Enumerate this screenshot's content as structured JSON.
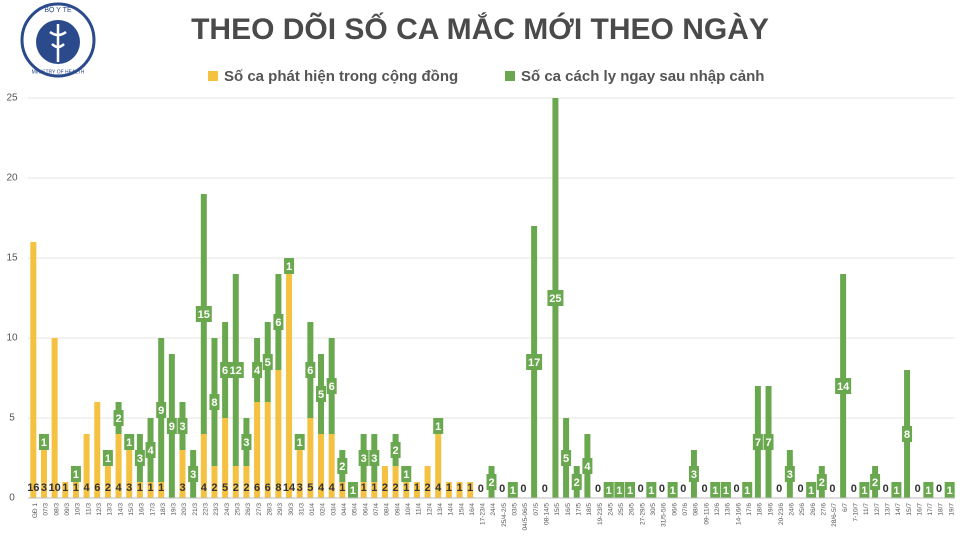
{
  "logo": {
    "top": "BỘ Y TẾ",
    "bottom": "MINISTRY OF HEALTH"
  },
  "chart_data": {
    "type": "stacked-bar",
    "title": "THEO DÕI SỐ CA MẮC MỚI THEO NGÀY",
    "categories": [
      "GĐ 1",
      "07/3",
      "08/3",
      "09/3",
      "10/3",
      "11/3",
      "12/3",
      "13/3",
      "14/3",
      "15/3",
      "16/3",
      "17/3",
      "18/3",
      "19/3",
      "20/3",
      "21/3",
      "22/3",
      "23/3",
      "24/3",
      "25/3",
      "26/3",
      "27/3",
      "28/3",
      "29/3",
      "30/3",
      "31/3",
      "01/4",
      "02/4",
      "03/4",
      "04/4",
      "05/4",
      "06/4",
      "07/4",
      "08/4",
      "09/4",
      "10/4",
      "11/4",
      "12/4",
      "13/4",
      "14/4",
      "15/4",
      "16/4",
      "17-23/4",
      "24/4",
      "25/4-2/5",
      "03/5",
      "04/5-06/5",
      "07/5",
      "08-14/5",
      "15/5",
      "16/5",
      "17/5",
      "18/5",
      "19-23/5",
      "24/5",
      "25/5",
      "26/5",
      "27-29/5",
      "30/5",
      "31/5-5/6",
      "06/6",
      "07/6",
      "08/6",
      "09-11/6",
      "12/6",
      "13/6",
      "14-16/6",
      "17/6",
      "18/6",
      "19/6",
      "20-23/6",
      "24/6",
      "25/6",
      "26/6",
      "27/6",
      "28/6-5/7",
      "6/7",
      "7-10/7",
      "11/7",
      "12/7",
      "13/7",
      "14/7",
      "15/7",
      "16/7",
      "17/7",
      "18/7",
      "19/7"
    ],
    "series": [
      {
        "name": "Số ca phát hiện trong cộng đồng",
        "color": "#f4c141",
        "values": [
          16,
          3,
          10,
          1,
          1,
          4,
          6,
          2,
          4,
          3,
          1,
          1,
          1,
          null,
          3,
          null,
          4,
          2,
          5,
          2,
          2,
          6,
          6,
          8,
          14,
          3,
          5,
          4,
          4,
          1,
          null,
          1,
          1,
          2,
          2,
          1,
          1,
          2,
          4,
          1,
          1,
          1,
          null,
          null,
          null,
          null,
          null,
          null,
          null,
          null,
          null,
          null,
          null,
          null,
          null,
          null,
          null,
          null,
          null,
          null,
          null,
          null,
          null,
          null,
          null,
          null,
          null,
          null,
          null,
          null,
          null,
          null,
          null,
          null,
          null,
          null,
          null,
          null,
          null,
          null,
          null,
          null,
          null,
          null,
          null,
          null,
          null
        ]
      },
      {
        "name": "Số ca cách ly ngay sau nhập cảnh",
        "color": "#6aa84f",
        "values": [
          null,
          1,
          null,
          null,
          1,
          null,
          null,
          1,
          2,
          1,
          3,
          4,
          9,
          9,
          3,
          3,
          15,
          8,
          6,
          12,
          3,
          4,
          5,
          6,
          1,
          1,
          6,
          5,
          6,
          2,
          1,
          3,
          3,
          null,
          2,
          1,
          null,
          null,
          1,
          null,
          null,
          null,
          0,
          2,
          0,
          1,
          0,
          17,
          0,
          25,
          5,
          2,
          4,
          0,
          1,
          1,
          1,
          0,
          1,
          0,
          1,
          0,
          3,
          0,
          1,
          1,
          0,
          1,
          7,
          7,
          0,
          3,
          0,
          1,
          2,
          0,
          14,
          0,
          1,
          2,
          0,
          1,
          8,
          0,
          1,
          0,
          1
        ]
      }
    ],
    "ylim": [
      0,
      25
    ],
    "yticks": [
      0,
      5,
      10,
      15,
      20,
      25
    ],
    "grid": true
  }
}
